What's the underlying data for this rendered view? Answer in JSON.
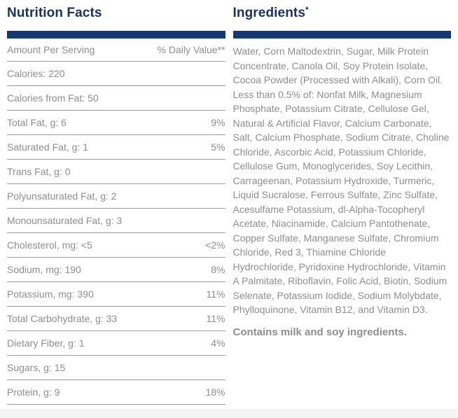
{
  "colors": {
    "heading_navy": "#1c3260",
    "bar_navy": "#143a70",
    "text_gray": "#8e8e8e",
    "divider_gray": "#9b9b9b",
    "background": "#ffffff",
    "bottom_strip": "#f4f4f4"
  },
  "nutrition_facts": {
    "title": "Nutrition Facts",
    "column_headers": {
      "amount": "Amount Per Serving",
      "daily_value": "% Daily Value**"
    },
    "rows": [
      {
        "label": "Calories: 220",
        "value": ""
      },
      {
        "label": "Calories from Fat: 50",
        "value": ""
      },
      {
        "label": "Total Fat, g: 6",
        "value": "9%"
      },
      {
        "label": "Saturated Fat, g: 1",
        "value": "5%"
      },
      {
        "label": "Trans Fat, g: 0",
        "value": ""
      },
      {
        "label": "Polyunsaturated Fat, g: 2",
        "value": ""
      },
      {
        "label": "Monounsaturated Fat, g: 3",
        "value": ""
      },
      {
        "label": "Cholesterol, mg: <5",
        "value": "<2%"
      },
      {
        "label": "Sodium, mg: 190",
        "value": "8%"
      },
      {
        "label": "Potassium, mg: 390",
        "value": "11%"
      },
      {
        "label": "Total Carbohydrate, g: 33",
        "value": "11%"
      },
      {
        "label": "Dietary Fiber, g: 1",
        "value": "4%"
      },
      {
        "label": "Sugars, g: 15",
        "value": ""
      },
      {
        "label": "Protein, g: 9",
        "value": "18%"
      }
    ]
  },
  "ingredients": {
    "title": "Ingredients",
    "superscript": "*",
    "list_text": "Water, Corn Maltodextrin, Sugar, Milk Protein Concentrate, Canola Oil, Soy Protein Isolate, Cocoa Powder (Processed with Alkali), Corn Oil. Less than 0.5% of: Nonfat Milk, Magnesium Phosphate, Potassium Citrate, Cellulose Gel, Natural & Artificial Flavor, Calcium Carbonate, Salt, Calcium Phosphate, Sodium Citrate, Choline Chloride, Ascorbic Acid, Potassium Chloride, Cellulose Gum, Monoglycerides, Soy Lecithin, Carrageenan, Potassium Hydroxide, Turmeric, Liquid Sucralose, Ferrous Sulfate, Zinc Sulfate, Acesulfame Potassium, dl-Alpha-Tocopheryl Acetate, Niacinamide, Calcium Pantothenate, Copper Sulfate, Manganese Sulfate, Chromium Chloride, Red 3, Thiamine Chloride Hydrochloride, Pyridoxine Hydrochloride, Vitamin A Palmitate, Riboflavin, Folic Acid, Biotin, Sodium Selenate, Potassium Iodide, Sodium Molybdate, Phylloquinone, Vitamin B12, and Vitamin D3.",
    "allergen_note": "Contains milk and soy ingredients."
  }
}
